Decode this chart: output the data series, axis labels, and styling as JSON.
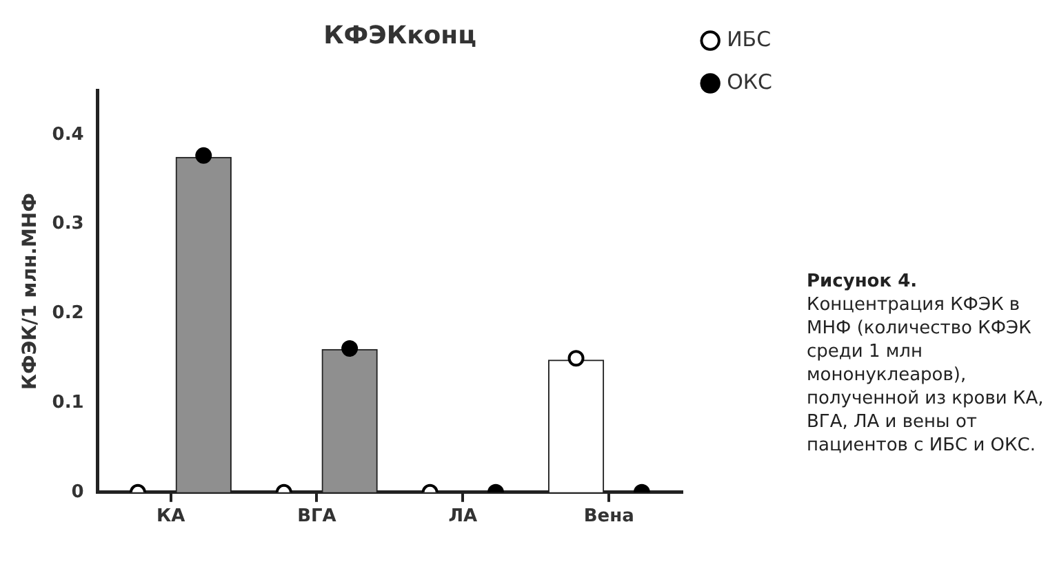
{
  "chart_data": {
    "type": "bar",
    "title": "КФЭКконц",
    "ylabel": "КФЭК/1 млн.МНФ",
    "categories": [
      "КА",
      "ВГА",
      "ЛА",
      "Вена"
    ],
    "series": [
      {
        "color": "#ffffff",
        "values": [
          null,
          null,
          null,
          0.148
        ]
      },
      {
        "color": "#8f8f8f",
        "values": [
          0.375,
          0.16,
          null,
          null
        ]
      },
      {
        "type": "scatter",
        "name": "ИБС",
        "color": "#ffffff",
        "values": [
          0,
          0,
          0,
          0.15
        ]
      },
      {
        "type": "scatter",
        "name": "ОКС",
        "color": "#000000",
        "values": [
          0.377,
          0.161,
          0,
          0
        ]
      }
    ],
    "ylim": [
      0,
      0.45
    ],
    "yticks": [
      0,
      0.1,
      0.2,
      0.3,
      0.4
    ],
    "grid": false,
    "legend": "top right",
    "marker": "circle",
    "annotations": [
      "Рисунок 4.",
      "Концентрация КФЭК в МНФ (количество КФЭК среди 1 млн мононуклеаров), полученной из крови КА, ВГА, ЛА и вены от пациентов с ИБС и ОКС."
    ]
  }
}
